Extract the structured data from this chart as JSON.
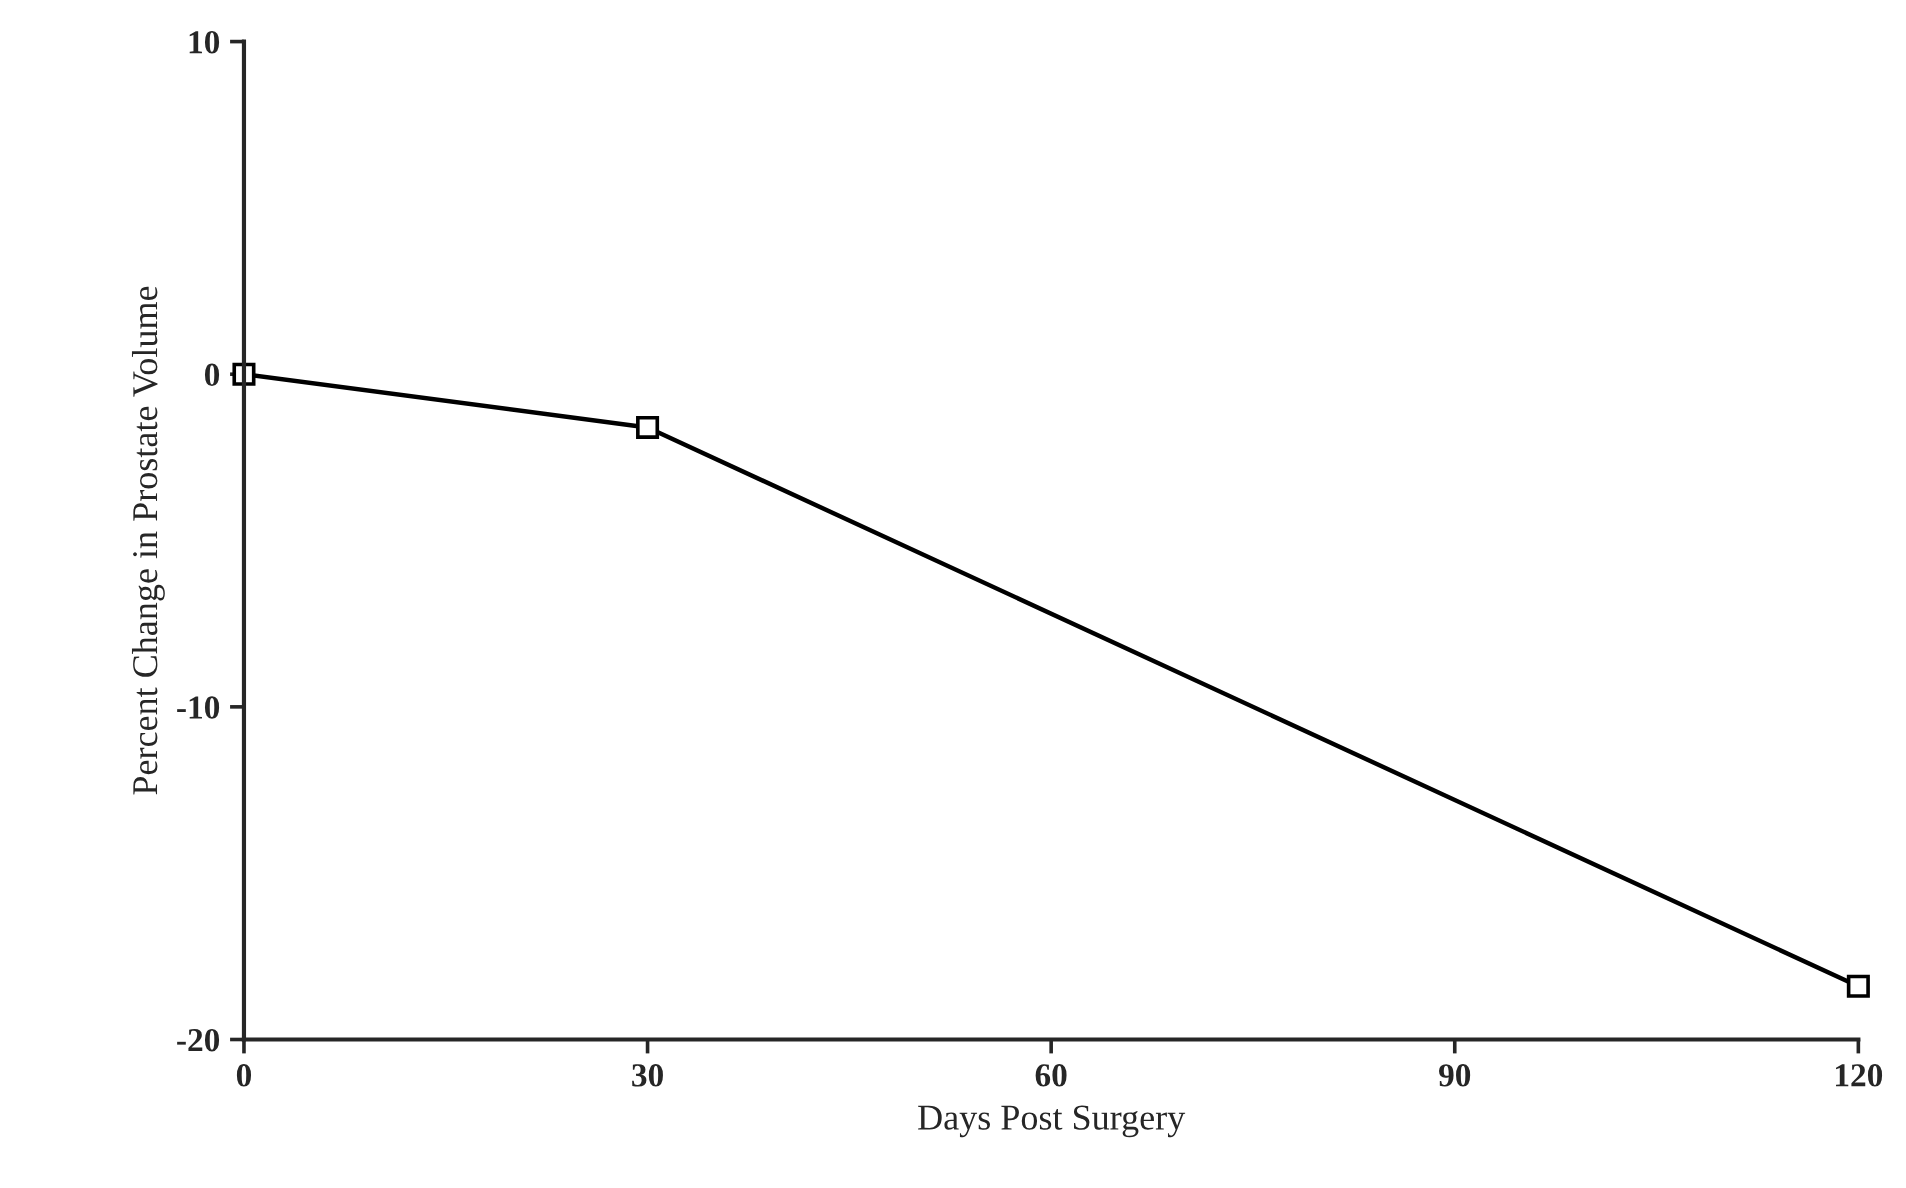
{
  "chart_data": {
    "type": "line",
    "xlabel": "Days Post Surgery",
    "ylabel": "Percent Change in Prostate Volume",
    "x": [
      0,
      30,
      120
    ],
    "series": [
      {
        "color": "#000000",
        "values": [
          0,
          -1.6,
          -18.4
        ]
      }
    ],
    "xlim": [
      0,
      120
    ],
    "xticks": [
      0,
      30,
      60,
      90,
      120
    ],
    "ylim": [
      -20,
      10
    ],
    "yticks": [
      -20,
      -10,
      0,
      10
    ],
    "marker": "square",
    "line_style": "solid",
    "grid": false
  }
}
